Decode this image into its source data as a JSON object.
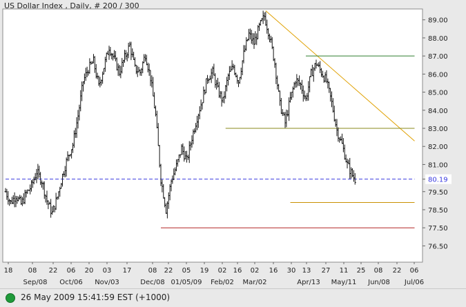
{
  "header": {
    "title": "US Dollar Index , Daily, # 200 / 300"
  },
  "status": {
    "text": "26 May 2009 15:41:59  EST (+1000)",
    "color": "#1f9a3a"
  },
  "chart_data": {
    "type": "ohlc",
    "title": "US Dollar Index , Daily, # 200 / 300",
    "ylim": [
      75.6,
      89.6
    ],
    "y_ticks": [
      "76.50",
      "77.50",
      "78.50",
      "79.50",
      "80.19",
      "81.00",
      "82.00",
      "83.00",
      "84.00",
      "85.00",
      "86.00",
      "87.00",
      "88.00",
      "89.00"
    ],
    "current_value": "80.19",
    "x_day_labels": [
      "18",
      "08",
      "22",
      "06",
      "20",
      "03",
      "17",
      "08",
      "22",
      "05",
      "19",
      "02",
      "16",
      "02",
      "16",
      "30",
      "13",
      "27",
      "11",
      "25",
      "08",
      "22",
      "06"
    ],
    "x_month_labels": [
      "Sep/08",
      "Oct/06",
      "Nov/03",
      "Dec/08",
      "01/05/09",
      "Feb/02",
      "Mar/02",
      "Apr/13",
      "May/11",
      "Jun/08",
      "Jul/06"
    ],
    "close_path": [
      [
        0,
        79.5
      ],
      [
        4,
        78.9
      ],
      [
        8,
        79.3
      ],
      [
        12,
        78.8
      ],
      [
        16,
        79.4
      ],
      [
        20,
        79.8
      ],
      [
        24,
        80.6
      ],
      [
        28,
        80.1
      ],
      [
        32,
        79.0
      ],
      [
        36,
        78.3
      ],
      [
        40,
        79.2
      ],
      [
        44,
        80.4
      ],
      [
        48,
        81.4
      ],
      [
        52,
        82.1
      ],
      [
        56,
        83.7
      ],
      [
        60,
        85.6
      ],
      [
        64,
        86.3
      ],
      [
        68,
        86.7
      ],
      [
        72,
        85.3
      ],
      [
        76,
        86.4
      ],
      [
        80,
        87.5
      ],
      [
        84,
        86.8
      ],
      [
        88,
        86.1
      ],
      [
        92,
        86.9
      ],
      [
        96,
        87.6
      ],
      [
        100,
        86.3
      ],
      [
        104,
        86.1
      ],
      [
        108,
        87.1
      ],
      [
        112,
        85.8
      ],
      [
        116,
        83.7
      ],
      [
        120,
        80.2
      ],
      [
        124,
        78.5
      ],
      [
        128,
        80.1
      ],
      [
        132,
        80.9
      ],
      [
        136,
        81.9
      ],
      [
        140,
        81.2
      ],
      [
        144,
        82.5
      ],
      [
        148,
        83.6
      ],
      [
        152,
        84.6
      ],
      [
        156,
        85.8
      ],
      [
        160,
        86.1
      ],
      [
        164,
        85.1
      ],
      [
        168,
        84.5
      ],
      [
        172,
        85.9
      ],
      [
        176,
        86.4
      ],
      [
        180,
        85.6
      ],
      [
        184,
        87.1
      ],
      [
        188,
        88.2
      ],
      [
        192,
        87.7
      ],
      [
        196,
        88.6
      ],
      [
        200,
        89.2
      ],
      [
        204,
        88.1
      ],
      [
        208,
        86.6
      ],
      [
        212,
        84.3
      ],
      [
        216,
        83.3
      ],
      [
        220,
        84.6
      ],
      [
        224,
        85.7
      ],
      [
        228,
        85.4
      ],
      [
        232,
        84.6
      ],
      [
        236,
        86.0
      ],
      [
        240,
        86.6
      ],
      [
        244,
        86.1
      ],
      [
        248,
        85.6
      ],
      [
        252,
        84.4
      ],
      [
        256,
        82.9
      ],
      [
        260,
        82.1
      ],
      [
        264,
        81.0
      ],
      [
        268,
        80.4
      ],
      [
        270,
        80.19
      ]
    ],
    "lines": [
      {
        "kind": "trendline",
        "color": "#e0a000",
        "from": [
          201,
          89.5
        ],
        "to": [
          316,
          82.3
        ]
      },
      {
        "kind": "horizontal",
        "value": 87.0,
        "color": "#2e7d2e",
        "x_from": 232,
        "x_to": 316
      },
      {
        "kind": "horizontal",
        "value": 83.0,
        "color": "#8a8a1a",
        "x_from": 170,
        "x_to": 316
      },
      {
        "kind": "horizontal",
        "value": 78.9,
        "color": "#c99000",
        "x_from": 220,
        "x_to": 316
      },
      {
        "kind": "horizontal",
        "value": 77.5,
        "color": "#b22222",
        "x_from": 120,
        "x_to": 316
      },
      {
        "kind": "dashed",
        "value": 80.19,
        "color": "#3a3ae0",
        "x_from": 0,
        "x_to": 316
      }
    ],
    "bar_count": 271
  }
}
